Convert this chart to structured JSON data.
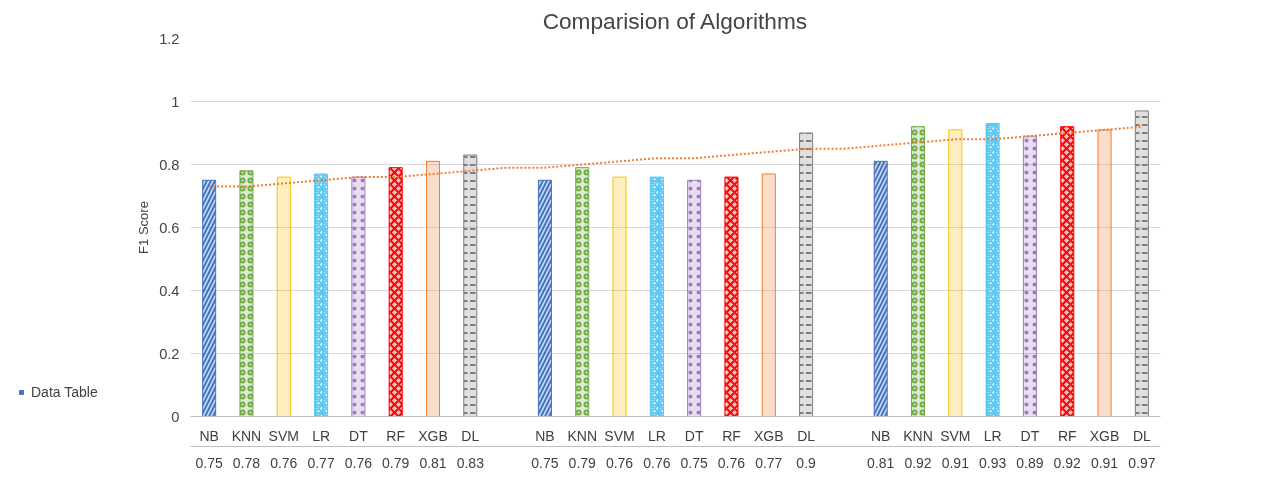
{
  "chart_data": {
    "type": "bar",
    "title": "Comparision of Algorithms",
    "ylabel": "F1 Score",
    "categories": [
      "NB",
      "KNN",
      "SVM",
      "LR",
      "DT",
      "RF",
      "XGB",
      "DL",
      null,
      "NB",
      "KNN",
      "SVM",
      "LR",
      "DT",
      "RF",
      "XGB",
      "DL",
      null,
      "NB",
      "KNN",
      "SVM",
      "LR",
      "DT",
      "RF",
      "XGB",
      "DL"
    ],
    "series": [
      {
        "name": "Data Table",
        "color": "#4472c4",
        "colors": [
          "#4472c4",
          "#70ad47",
          "#ffc000",
          "#5bc8f5",
          "#9e7cc1",
          "#ff0000",
          "#ed7d31",
          "#7f7f7f",
          null,
          "#4472c4",
          "#70ad47",
          "#ffc000",
          "#5bc8f5",
          "#9e7cc1",
          "#ff0000",
          "#ed7d31",
          "#7f7f7f",
          null,
          "#4472c4",
          "#70ad47",
          "#ffc000",
          "#5bc8f5",
          "#9e7cc1",
          "#ff0000",
          "#ed7d31",
          "#7f7f7f"
        ],
        "values": [
          0.75,
          0.78,
          0.76,
          0.77,
          0.76,
          0.79,
          0.81,
          0.83,
          null,
          0.75,
          0.79,
          0.76,
          0.76,
          0.75,
          0.76,
          0.77,
          0.9,
          null,
          0.81,
          0.92,
          0.91,
          0.93,
          0.89,
          0.92,
          0.91,
          0.97
        ],
        "value_labels": [
          "0.75",
          "0.78",
          "0.76",
          "0.77",
          "0.76",
          "0.79",
          "0.81",
          "0.83",
          null,
          "0.75",
          "0.79",
          "0.76",
          "0.76",
          "0.75",
          "0.76",
          "0.77",
          "0.9",
          null,
          "0.81",
          "0.92",
          "0.91",
          "0.93",
          "0.89",
          "0.92",
          "0.91",
          "0.97"
        ]
      },
      {
        "type": "line",
        "color": "#ed7d31",
        "line_style": "dotted",
        "values": [
          0.73,
          0.73,
          0.74,
          0.75,
          0.76,
          0.76,
          0.77,
          0.78,
          0.79,
          0.79,
          0.8,
          0.81,
          0.82,
          0.82,
          0.83,
          0.84,
          0.85,
          0.85,
          0.86,
          0.87,
          0.88,
          0.88,
          0.89,
          0.9,
          0.91,
          0.92
        ]
      }
    ],
    "ylim": [
      0,
      1.2
    ],
    "yticks": [
      0,
      0.2,
      0.4,
      0.6,
      0.8,
      1,
      1.2
    ],
    "grid": "y",
    "legend": "bottom left"
  }
}
